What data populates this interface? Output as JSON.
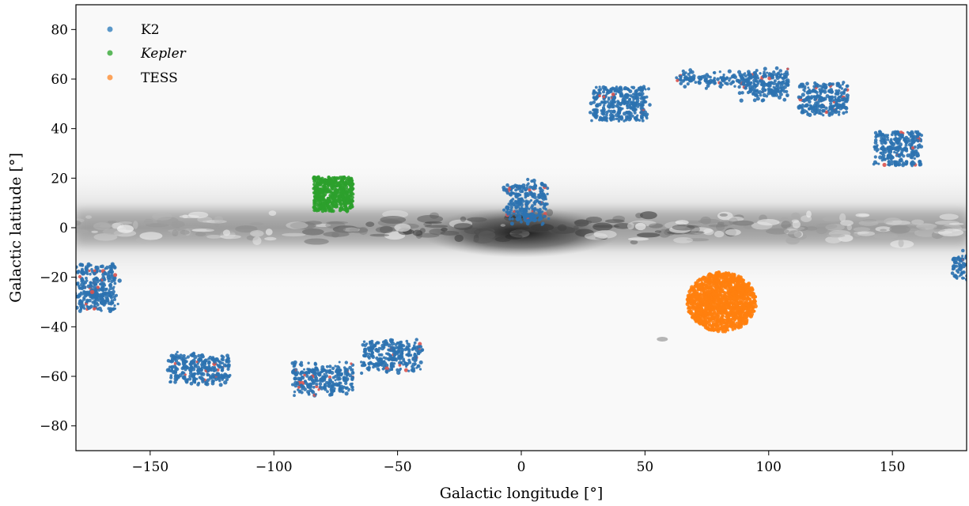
{
  "chart_data": {
    "type": "scatter",
    "xlabel": "Galactic longitude [°]",
    "ylabel": "Galactic latitude [°]",
    "xlim": [
      -180,
      180
    ],
    "ylim": [
      -90,
      90
    ],
    "xticks": [
      -150,
      -100,
      -50,
      0,
      50,
      100,
      150
    ],
    "yticks": [
      -80,
      -60,
      -40,
      -20,
      0,
      20,
      40,
      60,
      80
    ],
    "xtick_labels": [
      "−150",
      "−100",
      "−50",
      "0",
      "50",
      "100",
      "150"
    ],
    "ytick_labels": [
      "−80",
      "−60",
      "−40",
      "−20",
      "0",
      "20",
      "40",
      "60",
      "80"
    ],
    "grid": false,
    "legend_position": "top-left",
    "background": "greyscale Milky Way dust map concentrated along latitude 0",
    "colors": {
      "K2": "#2c72b0",
      "Kepler": "#2ca02c",
      "TESS": "#ff7f0e",
      "highlight": "#d9534f"
    },
    "series": [
      {
        "name": "K2",
        "marker_color": "#5b98c9",
        "fields": [
          {
            "l": -172,
            "b": -24,
            "w": 16,
            "h": 18
          },
          {
            "l": -130,
            "b": -57,
            "w": 24,
            "h": 11
          },
          {
            "l": -80,
            "b": -61,
            "w": 24,
            "h": 11
          },
          {
            "l": -52,
            "b": -52,
            "w": 24,
            "h": 11
          },
          {
            "l": 40,
            "b": 50,
            "w": 22,
            "h": 14
          },
          {
            "l": 78,
            "b": 60,
            "w": 28,
            "h": 4
          },
          {
            "l": 98,
            "b": 58,
            "w": 20,
            "h": 10
          },
          {
            "l": 122,
            "b": 52,
            "w": 20,
            "h": 12
          },
          {
            "l": 152,
            "b": 32,
            "w": 18,
            "h": 14
          },
          {
            "l": 178,
            "b": -16,
            "w": 6,
            "h": 10
          },
          {
            "l": 2,
            "b": 10,
            "w": 16,
            "h": 16
          }
        ]
      },
      {
        "name": "Kepler",
        "marker_color": "#5cb85c",
        "fields": [
          {
            "l": -76,
            "b": 13.5,
            "w": 16,
            "h": 14
          }
        ]
      },
      {
        "name": "TESS",
        "marker_color": "#fda35a",
        "fields": [
          {
            "l": 81,
            "b": -30,
            "w": 28,
            "h": 24
          }
        ]
      }
    ]
  }
}
